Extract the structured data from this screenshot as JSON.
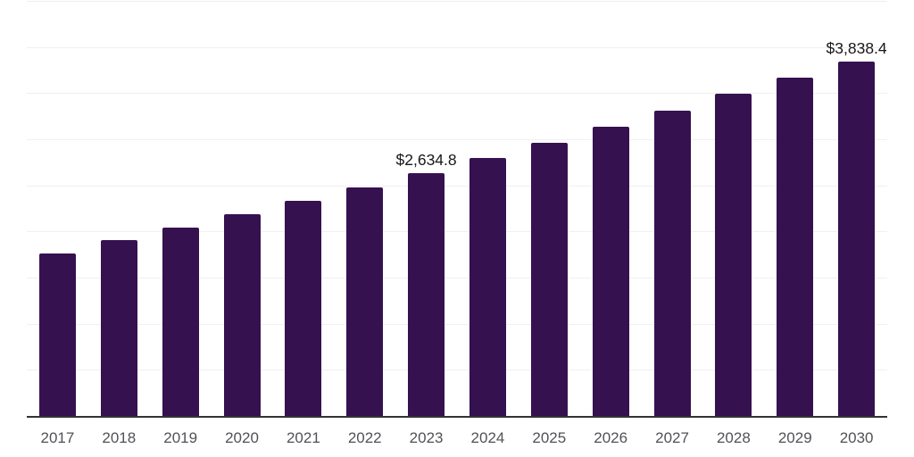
{
  "chart_data": {
    "type": "bar",
    "title": "",
    "xlabel": "",
    "ylabel": "",
    "categories": [
      "2017",
      "2018",
      "2019",
      "2020",
      "2021",
      "2022",
      "2023",
      "2024",
      "2025",
      "2026",
      "2027",
      "2028",
      "2029",
      "2030"
    ],
    "values": [
      1765,
      1910,
      2040,
      2185,
      2330,
      2475,
      2634.8,
      2800,
      2965,
      3135,
      3310,
      3495,
      3665,
      3838.4
    ],
    "value_labels": [
      {
        "category": "2023",
        "text": "$2,634.8"
      },
      {
        "category": "2030",
        "text": "$3,838.4"
      }
    ],
    "ylim": [
      0,
      4500
    ],
    "gridline_step": 500,
    "grid": true,
    "legend": false,
    "y_tick_labels_visible": false,
    "colors": {
      "bar": "#361150",
      "axis": "#333333",
      "gridline": "#f0f0f0",
      "tick_label": "#515257",
      "value_label": "#17171c",
      "background": "#ffffff"
    }
  }
}
